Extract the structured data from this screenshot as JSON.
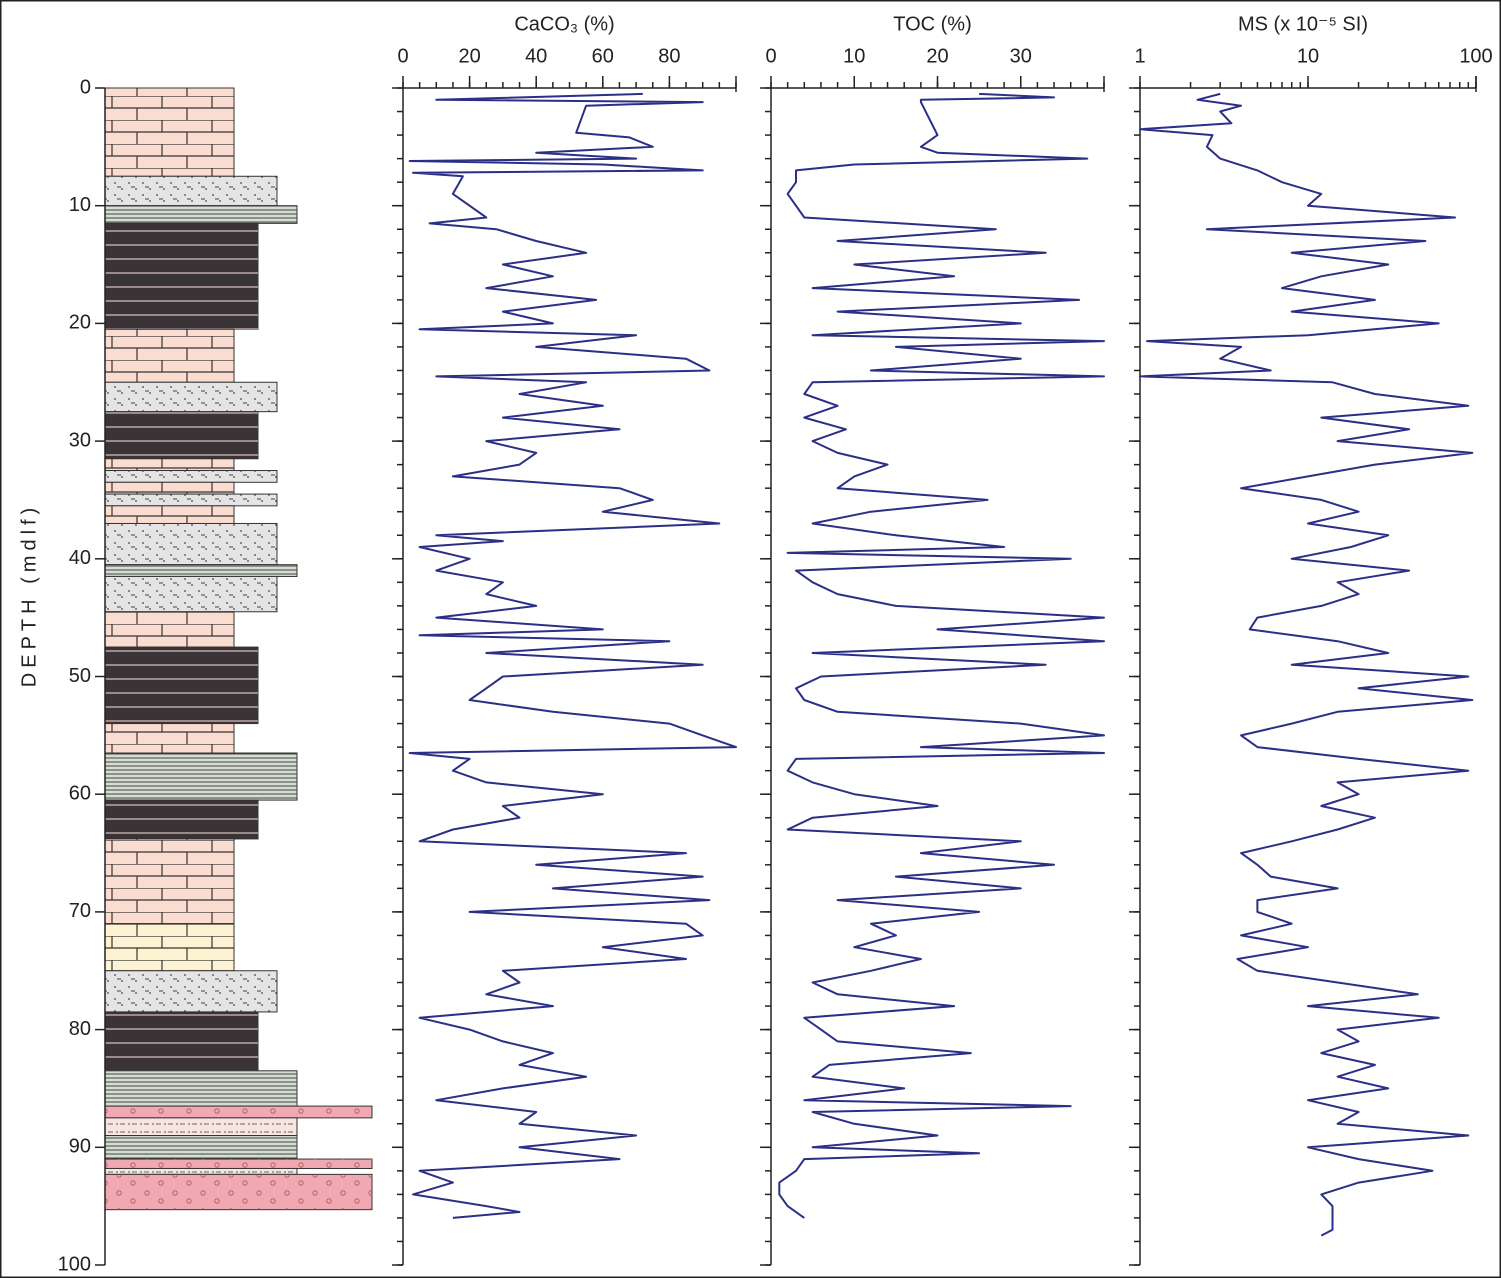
{
  "chart_data": [
    {
      "type": "column",
      "ylabel": "DEPTH (mdlf)",
      "ylim": [
        0,
        100
      ],
      "yticks": [
        0,
        10,
        20,
        30,
        40,
        50,
        60,
        70,
        80,
        90,
        100
      ],
      "depth_minor_ticks": [
        0,
        2,
        4,
        6,
        8,
        10,
        12,
        14,
        16,
        18,
        20,
        22,
        24,
        26,
        28,
        30,
        32,
        34,
        36,
        38,
        40,
        42,
        44,
        46,
        48,
        50,
        52,
        54,
        56,
        58,
        60,
        62,
        64,
        66,
        68,
        70,
        72,
        74,
        76,
        78,
        80,
        82,
        84,
        86,
        88,
        90,
        92,
        94,
        96,
        98,
        100
      ],
      "lithology": [
        {
          "top": 0,
          "bottom": 7.5,
          "color": "#fbdcd0"
        },
        {
          "top": 7.5,
          "bottom": 10,
          "color": "#e4e4e4"
        },
        {
          "top": 10,
          "bottom": 11.5,
          "color": "#d6ddd3"
        },
        {
          "top": 11.5,
          "bottom": 20.5,
          "color": "#3b3436"
        },
        {
          "top": 20.5,
          "bottom": 25,
          "color": "#fbdcd0"
        },
        {
          "top": 25,
          "bottom": 27.5,
          "color": "#e4e4e4"
        },
        {
          "top": 27.5,
          "bottom": 31.5,
          "color": "#3b3436"
        },
        {
          "top": 31.5,
          "bottom": 32.5,
          "color": "#fbdcd0"
        },
        {
          "top": 32.5,
          "bottom": 33.5,
          "color": "#e4e4e4"
        },
        {
          "top": 33.5,
          "bottom": 34.5,
          "color": "#fbdcd0"
        },
        {
          "top": 34.5,
          "bottom": 35.5,
          "color": "#e4e4e4"
        },
        {
          "top": 35.5,
          "bottom": 37,
          "color": "#fbdcd0"
        },
        {
          "top": 37,
          "bottom": 40.5,
          "color": "#e4e4e4"
        },
        {
          "top": 40.5,
          "bottom": 41.5,
          "color": "#d6ddd3"
        },
        {
          "top": 41.5,
          "bottom": 44.5,
          "color": "#e4e4e4"
        },
        {
          "top": 44.5,
          "bottom": 47.5,
          "color": "#fbdcd0"
        },
        {
          "top": 47.5,
          "bottom": 54,
          "color": "#3b3436"
        },
        {
          "top": 54,
          "bottom": 56.5,
          "color": "#fbdcd0"
        },
        {
          "top": 56.5,
          "bottom": 60.5,
          "color": "#d6ddd3"
        },
        {
          "top": 60.5,
          "bottom": 63.8,
          "color": "#3b3436"
        },
        {
          "top": 63.8,
          "bottom": 71,
          "color": "#fbdcd0"
        },
        {
          "top": 71,
          "bottom": 75,
          "color": "#fdf3d2"
        },
        {
          "top": 75,
          "bottom": 78.5,
          "color": "#e4e4e4"
        },
        {
          "top": 78.5,
          "bottom": 83.5,
          "color": "#3b3436"
        },
        {
          "top": 83.5,
          "bottom": 86.5,
          "color": "#d6ddd3"
        },
        {
          "top": 86.5,
          "bottom": 87.5,
          "color": "#f0a9b2"
        },
        {
          "top": 87.5,
          "bottom": 89,
          "color": "#f7e6e0"
        },
        {
          "top": 89,
          "bottom": 91,
          "color": "#d6ddd3"
        },
        {
          "top": 91,
          "bottom": 91.8,
          "color": "#f0a9b2"
        },
        {
          "top": 91.8,
          "bottom": 92.3,
          "color": "#f7e6e0"
        },
        {
          "top": 92.3,
          "bottom": 95.3,
          "color": "#f0a9b2"
        }
      ]
    },
    {
      "type": "profile",
      "title": "CaCO₃ (%)",
      "xlim": [
        0,
        100
      ],
      "xticks": [
        0,
        20,
        40,
        60,
        80
      ],
      "xminor": [
        0,
        5,
        10,
        15,
        20,
        25,
        30,
        35,
        40,
        45,
        50,
        55,
        60,
        65,
        70,
        75,
        80,
        85,
        90,
        95,
        100
      ],
      "series": [
        {
          "color": "#2b2f86",
          "depth": [
            0.5,
            1,
            1.2,
            1.5,
            3.8,
            4.2,
            5,
            5.5,
            6,
            6.2,
            6.5,
            7,
            7.2,
            7.5,
            9,
            10,
            11,
            11.5,
            12,
            13,
            14,
            15,
            16,
            17,
            18,
            19,
            20,
            20.5,
            21,
            22,
            23,
            24,
            24.5,
            25,
            26,
            27,
            28,
            29,
            30,
            31,
            32,
            33,
            34,
            35,
            36,
            37,
            38,
            38.5,
            39,
            40,
            41,
            42,
            43,
            44,
            45,
            46,
            46.5,
            47,
            48,
            49,
            50,
            51,
            52,
            53,
            54,
            55,
            56,
            56.5,
            57,
            58,
            59,
            60,
            61,
            62,
            63,
            64,
            65,
            66,
            67,
            68,
            69,
            70,
            71,
            72,
            73,
            74,
            75,
            76,
            77,
            78,
            79,
            80,
            81,
            82,
            83,
            84,
            85,
            86,
            87,
            88,
            89,
            90,
            91,
            92,
            93,
            94,
            95,
            95.5,
            96
          ],
          "values": [
            72,
            10,
            90,
            55,
            52,
            68,
            75,
            40,
            70,
            2,
            60,
            90,
            3,
            18,
            15,
            20,
            25,
            8,
            28,
            40,
            55,
            30,
            45,
            25,
            58,
            30,
            45,
            5,
            70,
            40,
            85,
            92,
            10,
            55,
            35,
            60,
            30,
            65,
            25,
            40,
            35,
            15,
            65,
            75,
            60,
            95,
            10,
            30,
            5,
            20,
            10,
            30,
            25,
            40,
            10,
            60,
            5,
            80,
            25,
            90,
            30,
            25,
            20,
            45,
            80,
            90,
            100,
            2,
            20,
            15,
            25,
            60,
            30,
            35,
            15,
            5,
            85,
            40,
            90,
            45,
            92,
            20,
            85,
            90,
            60,
            85,
            30,
            35,
            25,
            45,
            5,
            20,
            30,
            45,
            35,
            55,
            30,
            10,
            40,
            35,
            70,
            35,
            65,
            5,
            15,
            3,
            25,
            35,
            15
          ]
        }
      ]
    },
    {
      "type": "profile",
      "title": "TOC (%)",
      "xlim": [
        0,
        40
      ],
      "xticks": [
        0,
        10,
        20,
        30
      ],
      "xminor": [
        0,
        2,
        4,
        6,
        8,
        10,
        12,
        14,
        16,
        18,
        20,
        22,
        24,
        26,
        28,
        30,
        32,
        34,
        36,
        38,
        40
      ],
      "series": [
        {
          "color": "#2b2f86",
          "depth": [
            0.5,
            0.8,
            1,
            1.2,
            4,
            5,
            5.5,
            6,
            6.5,
            7,
            8,
            9,
            10,
            11,
            12,
            13,
            14,
            15,
            16,
            17,
            18,
            19,
            20,
            21,
            21.5,
            22,
            23,
            24,
            24.5,
            25,
            26,
            27,
            28,
            29,
            30,
            31,
            32,
            33,
            34,
            35,
            36,
            37,
            38,
            39,
            39.5,
            40,
            41,
            42,
            43,
            44,
            45,
            46,
            47,
            48,
            49,
            50,
            51,
            52,
            53,
            54,
            55,
            56,
            56.5,
            57,
            58,
            59,
            60,
            61,
            62,
            63,
            64,
            65,
            66,
            67,
            68,
            69,
            70,
            71,
            72,
            73,
            74,
            75,
            76,
            77,
            78,
            79,
            80,
            81,
            82,
            83,
            84,
            85,
            86,
            86.5,
            87,
            88,
            89,
            90,
            90.5,
            91,
            92,
            93,
            94,
            95,
            96
          ],
          "values": [
            25,
            34,
            18,
            18,
            20,
            18,
            20,
            38,
            10,
            3,
            3,
            2,
            3,
            4,
            27,
            8,
            33,
            10,
            22,
            5,
            37,
            8,
            30,
            5,
            40,
            15,
            30,
            12,
            40,
            5,
            4,
            8,
            4,
            9,
            5,
            8,
            14,
            10,
            8,
            26,
            12,
            5,
            15,
            28,
            2,
            36,
            3,
            5,
            8,
            15,
            40,
            20,
            40,
            5,
            33,
            6,
            3,
            4,
            8,
            30,
            40,
            18,
            40,
            3,
            2,
            5,
            10,
            20,
            5,
            2,
            30,
            18,
            34,
            15,
            30,
            8,
            25,
            12,
            15,
            10,
            18,
            12,
            5,
            8,
            22,
            4,
            6,
            8,
            24,
            7,
            5,
            16,
            4,
            36,
            5,
            10,
            20,
            5,
            25,
            4,
            3,
            1,
            1,
            2,
            4
          ]
        }
      ]
    },
    {
      "type": "profile",
      "title": "MS (x 10⁻⁵ SI)",
      "log": true,
      "xlim": [
        1,
        100
      ],
      "xticks": [
        1,
        10,
        100
      ],
      "xminor": [
        1,
        2,
        3,
        4,
        5,
        6,
        7,
        8,
        9,
        10,
        20,
        30,
        40,
        50,
        60,
        70,
        80,
        90,
        100
      ],
      "series": [
        {
          "color": "#2b2f86",
          "depth": [
            0.5,
            1,
            1.5,
            2,
            3,
            3.5,
            4,
            5,
            6,
            7,
            8,
            9,
            10,
            11,
            12,
            13,
            14,
            15,
            16,
            17,
            18,
            19,
            20,
            21,
            21.5,
            22,
            23,
            24,
            24.5,
            25,
            26,
            27,
            28,
            29,
            30,
            31,
            32,
            33,
            34,
            35,
            36,
            37,
            38,
            39,
            40,
            41,
            42,
            43,
            44,
            45,
            46,
            47,
            48,
            49,
            50,
            51,
            52,
            53,
            54,
            55,
            56,
            57,
            58,
            59,
            60,
            61,
            62,
            63,
            64,
            65,
            66,
            67,
            68,
            69,
            70,
            71,
            72,
            73,
            74,
            75,
            76,
            77,
            78,
            79,
            80,
            81,
            82,
            83,
            84,
            85,
            86,
            87,
            88,
            89,
            90,
            91,
            92,
            93,
            94,
            95,
            97,
            97.5
          ],
          "values": [
            3,
            2.2,
            4,
            3,
            3.5,
            1,
            2.7,
            2.5,
            3,
            5,
            7,
            12,
            10,
            75,
            2.5,
            50,
            8,
            30,
            12,
            7,
            25,
            8,
            60,
            10,
            1.1,
            4,
            3,
            6,
            1,
            14,
            25,
            90,
            12,
            40,
            15,
            95,
            25,
            10,
            4,
            12,
            20,
            10,
            30,
            18,
            8,
            40,
            15,
            20,
            12,
            5,
            4.5,
            15,
            30,
            8,
            90,
            20,
            95,
            15,
            8,
            4,
            5,
            20,
            90,
            15,
            20,
            12,
            25,
            15,
            8,
            4,
            5,
            6,
            15,
            5,
            5,
            8,
            4,
            10,
            3.8,
            5,
            15,
            45,
            10,
            60,
            15,
            20,
            12,
            25,
            15,
            30,
            10,
            20,
            15,
            90,
            10,
            20,
            55,
            20,
            12,
            14,
            14,
            12
          ]
        }
      ]
    }
  ]
}
